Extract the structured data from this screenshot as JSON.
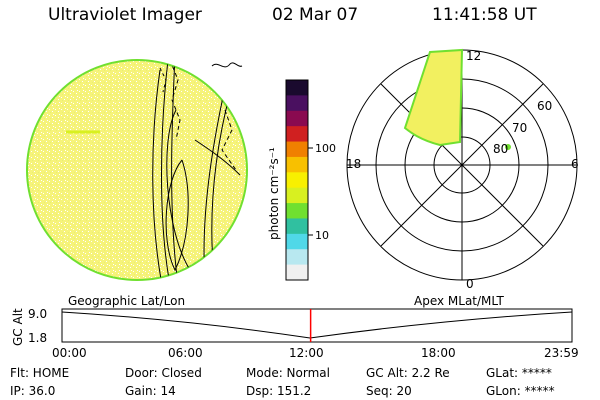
{
  "header": {
    "instrument": "Ultraviolet Imager",
    "date": "02 Mar 07",
    "time": "11:41:58 UT"
  },
  "colorbar": {
    "label": "photon cm⁻²s⁻¹",
    "ticks": [
      "100",
      "10"
    ],
    "scale": "log",
    "colors": [
      "#1a0a2e",
      "#4a1060",
      "#8a0a50",
      "#d02020",
      "#f08000",
      "#f8c000",
      "#f8f000",
      "#d8f020",
      "#70e030",
      "#30c0a0",
      "#50d8e8",
      "#b8e8f0",
      "#f0f0f0"
    ]
  },
  "polar": {
    "mlt_labels": [
      "12",
      "18",
      "6",
      "0"
    ],
    "lat_labels": [
      "60",
      "70",
      "80"
    ]
  },
  "timeline": {
    "left_label": "Geographic Lat/Lon",
    "right_label": "Apex MLat/MLT",
    "axis_title": "GC Alt",
    "y_ticks": [
      "9.0",
      "1.8"
    ],
    "x_ticks": [
      "00:00",
      "06:00",
      "12:00",
      "18:00",
      "23:59"
    ],
    "current_time_hours": 11.7
  },
  "status": {
    "flt": "Flt: HOME",
    "ip": "IP: 36.0",
    "door": "Door: Closed",
    "gain": "Gain: 14",
    "mode": "Mode: Normal",
    "dsp": "Dsp:  151.2",
    "gcalt": "GC Alt: 2.2 Re",
    "seq": "Seq: 20",
    "glat": "GLat: *****",
    "glon": "GLon: *****"
  },
  "colors": {
    "disk_fill": "#f6f37a",
    "disk_edge": "#70e030",
    "oval_fill": "#f2f060",
    "marker": "#ff0000"
  }
}
